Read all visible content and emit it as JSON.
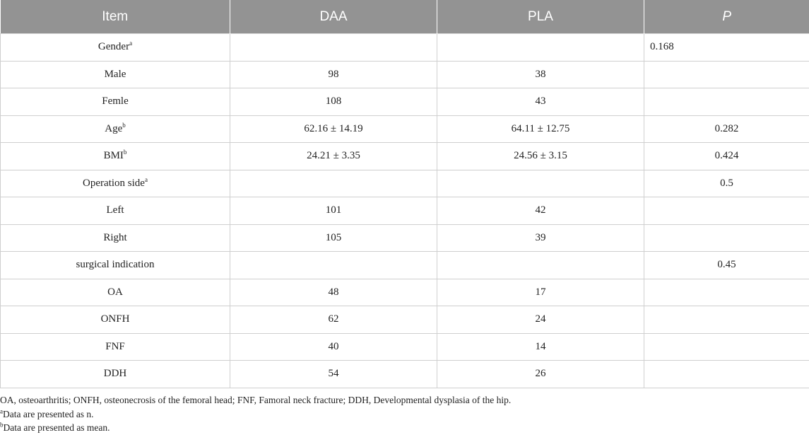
{
  "table": {
    "headers": [
      "Item",
      "DAA",
      "PLA",
      "P"
    ],
    "rows": [
      {
        "item": "Gender",
        "sup": "a",
        "daa": "",
        "pla": "",
        "p": "0.168",
        "p_left": true
      },
      {
        "item": "Male",
        "sup": "",
        "daa": "98",
        "pla": "38",
        "p": ""
      },
      {
        "item": "Femle",
        "sup": "",
        "daa": "108",
        "pla": "43",
        "p": ""
      },
      {
        "item": "Age",
        "sup": "b",
        "daa": "62.16 ± 14.19",
        "pla": "64.11 ± 12.75",
        "p": "0.282"
      },
      {
        "item": "BMI",
        "sup": "b",
        "daa": "24.21 ± 3.35",
        "pla": "24.56 ± 3.15",
        "p": "0.424"
      },
      {
        "item": "Operation side",
        "sup": "a",
        "daa": "",
        "pla": "",
        "p": "0.5"
      },
      {
        "item": "Left",
        "sup": "",
        "daa": "101",
        "pla": "42",
        "p": ""
      },
      {
        "item": "Right",
        "sup": "",
        "daa": "105",
        "pla": "39",
        "p": ""
      },
      {
        "item": "surgical indication",
        "sup": "",
        "daa": "",
        "pla": "",
        "p": "0.45"
      },
      {
        "item": "OA",
        "sup": "",
        "daa": "48",
        "pla": "17",
        "p": ""
      },
      {
        "item": "ONFH",
        "sup": "",
        "daa": "62",
        "pla": "24",
        "p": ""
      },
      {
        "item": "FNF",
        "sup": "",
        "daa": "40",
        "pla": "14",
        "p": ""
      },
      {
        "item": "DDH",
        "sup": "",
        "daa": "54",
        "pla": "26",
        "p": ""
      }
    ]
  },
  "notes": {
    "abbreviations": "OA, osteoarthritis; ONFH, osteonecrosis of the femoral head; FNF, Famoral neck fracture; DDH, Developmental dysplasia of the hip.",
    "note_a_mark": "a",
    "note_a_text": "Data are presented as n.",
    "note_b_mark": "b",
    "note_b_text": "Data are presented as mean."
  }
}
